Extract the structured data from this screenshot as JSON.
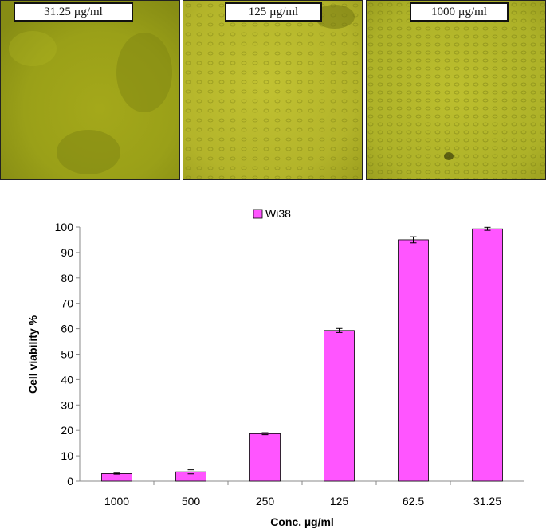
{
  "panels": [
    {
      "label": "31.25 µg/ml",
      "color": "#a7ab1c"
    },
    {
      "label": "125 µg/ml",
      "color": "#b9ba2c"
    },
    {
      "label": "1000 µg/ml",
      "color": "#b2b72a"
    }
  ],
  "chart_data": {
    "type": "bar",
    "title": "",
    "xlabel": "Conc. µg/ml",
    "ylabel": "Cell viability %",
    "categories": [
      "1000",
      "500",
      "250",
      "125",
      "62.5",
      "31.25"
    ],
    "series": [
      {
        "name": "Wi38",
        "values": [
          3,
          3.7,
          18.7,
          59.3,
          95,
          99.3
        ],
        "errors": [
          0.2,
          0.8,
          0.4,
          0.8,
          1.2,
          0.6
        ],
        "color": "#ff55ff"
      }
    ],
    "ylim": [
      0,
      100
    ],
    "yticks": [
      0,
      10,
      20,
      30,
      40,
      50,
      60,
      70,
      80,
      90,
      100
    ],
    "grid": false,
    "legend": "top"
  }
}
